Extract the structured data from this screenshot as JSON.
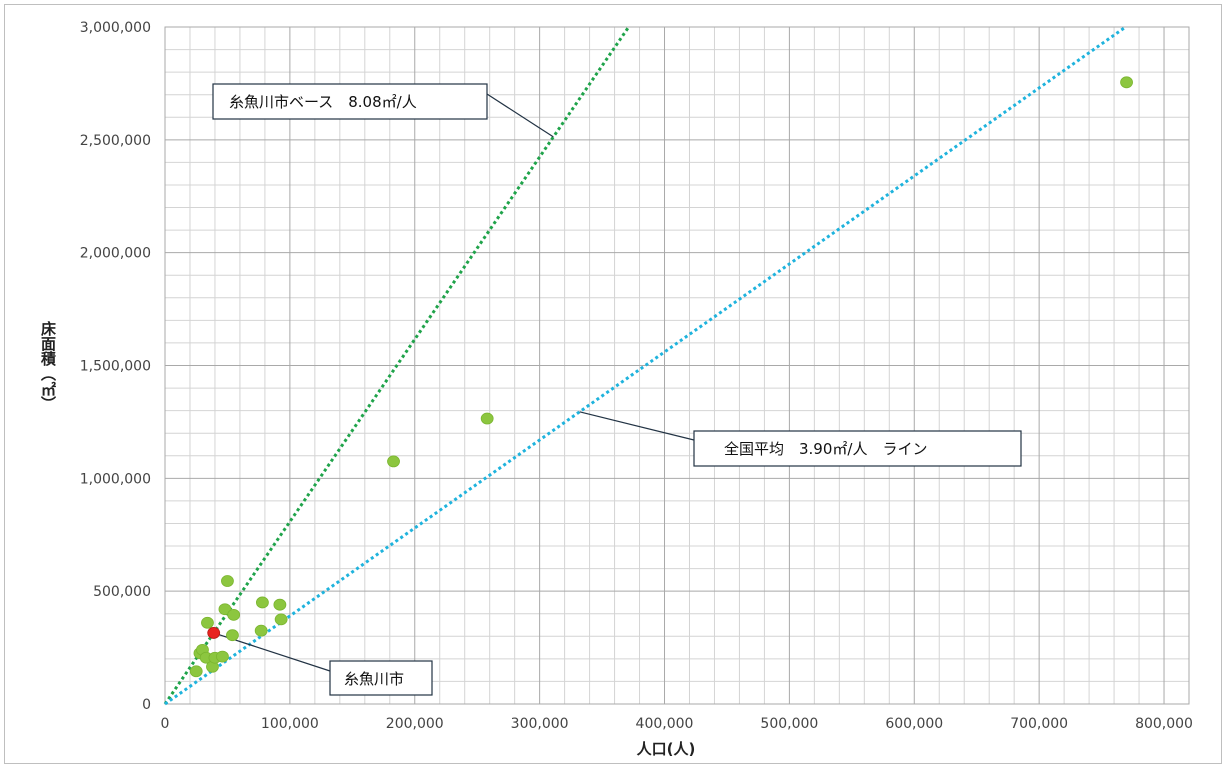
{
  "chart_data": {
    "type": "scatter",
    "xlabel": "人口(人)",
    "ylabel": "床面積（㎡）",
    "xlim": [
      0,
      820000
    ],
    "ylim": [
      0,
      3000000
    ],
    "x_ticks": [
      "0",
      "100,000",
      "200,000",
      "300,000",
      "400,000",
      "500,000",
      "600,000",
      "700,000",
      "800,000"
    ],
    "y_ticks": [
      "0",
      "500,000",
      "1,000,000",
      "1,500,000",
      "2,000,000",
      "2,500,000",
      "3,000,000"
    ],
    "grid": true,
    "lines": [
      {
        "label": "糸魚川市ベース　8.08㎡/人",
        "slope": 8.08,
        "color": "#1fa34a"
      },
      {
        "label": "全国平均　3.90㎡/人　ライン",
        "slope": 3.9,
        "color": "#1fb3dd"
      }
    ],
    "points": [
      {
        "x": 25000,
        "y": 145000
      },
      {
        "x": 28000,
        "y": 225000
      },
      {
        "x": 30000,
        "y": 240000
      },
      {
        "x": 33000,
        "y": 205000
      },
      {
        "x": 34000,
        "y": 360000
      },
      {
        "x": 38000,
        "y": 165000
      },
      {
        "x": 40000,
        "y": 205000
      },
      {
        "x": 46000,
        "y": 210000
      },
      {
        "x": 48000,
        "y": 420000
      },
      {
        "x": 50000,
        "y": 545000
      },
      {
        "x": 54000,
        "y": 305000
      },
      {
        "x": 55000,
        "y": 395000
      },
      {
        "x": 77000,
        "y": 325000
      },
      {
        "x": 78000,
        "y": 450000
      },
      {
        "x": 92000,
        "y": 440000
      },
      {
        "x": 93000,
        "y": 375000
      },
      {
        "x": 183000,
        "y": 1075000
      },
      {
        "x": 258000,
        "y": 1265000
      },
      {
        "x": 770000,
        "y": 2755000
      }
    ],
    "highlight": {
      "label": "糸魚川市",
      "x": 39000,
      "y": 315000,
      "color": "#e8231f"
    },
    "point_color": "#8cc63f"
  }
}
